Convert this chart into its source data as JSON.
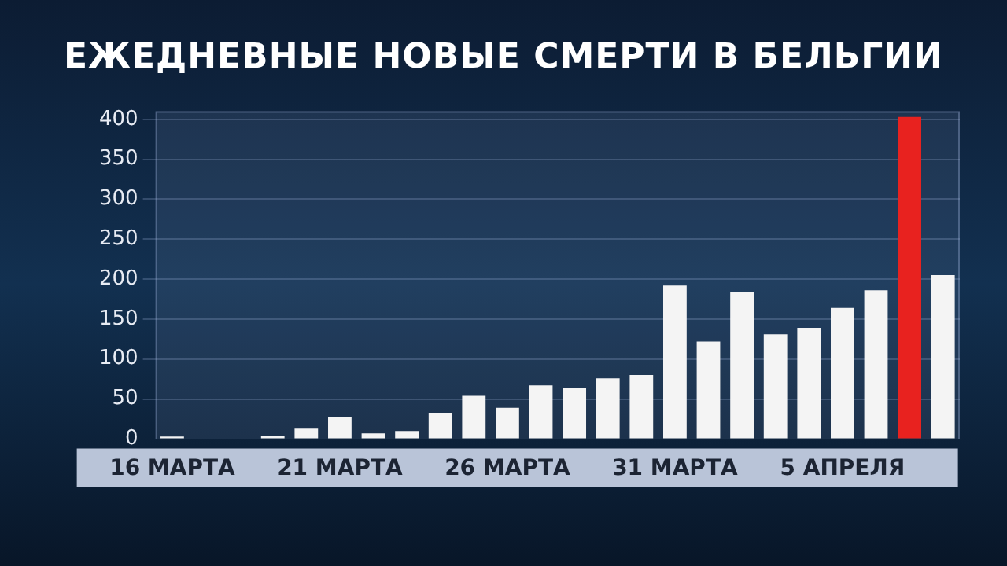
{
  "chart_data": {
    "type": "bar",
    "title": "ЕЖЕДНЕВНЫЕ НОВЫЕ СМЕРТИ В БЕЛЬГИИ",
    "categories": [
      "16 МАРТА",
      null,
      null,
      null,
      null,
      "21 МАРТА",
      null,
      null,
      null,
      null,
      "26 МАРТА",
      null,
      null,
      null,
      null,
      "31 МАРТА",
      null,
      null,
      null,
      null,
      "5 АПРЕЛЯ",
      null,
      null,
      null
    ],
    "values": [
      3,
      0,
      1,
      4,
      13,
      28,
      7,
      10,
      32,
      54,
      39,
      67,
      64,
      76,
      80,
      192,
      122,
      184,
      131,
      139,
      164,
      186,
      403,
      205
    ],
    "colors": [
      "#f4f4f4",
      "#f4f4f4",
      "#f4f4f4",
      "#f4f4f4",
      "#f4f4f4",
      "#f4f4f4",
      "#f4f4f4",
      "#f4f4f4",
      "#f4f4f4",
      "#f4f4f4",
      "#f4f4f4",
      "#f4f4f4",
      "#f4f4f4",
      "#f4f4f4",
      "#f4f4f4",
      "#f4f4f4",
      "#f4f4f4",
      "#f4f4f4",
      "#f4f4f4",
      "#f4f4f4",
      "#f4f4f4",
      "#f4f4f4",
      "#e8221f",
      "#f4f4f4"
    ],
    "ylim": [
      0,
      410
    ],
    "yticks": [
      0,
      50,
      100,
      150,
      200,
      250,
      300,
      350,
      400
    ],
    "grid": "y",
    "legend": false
  }
}
